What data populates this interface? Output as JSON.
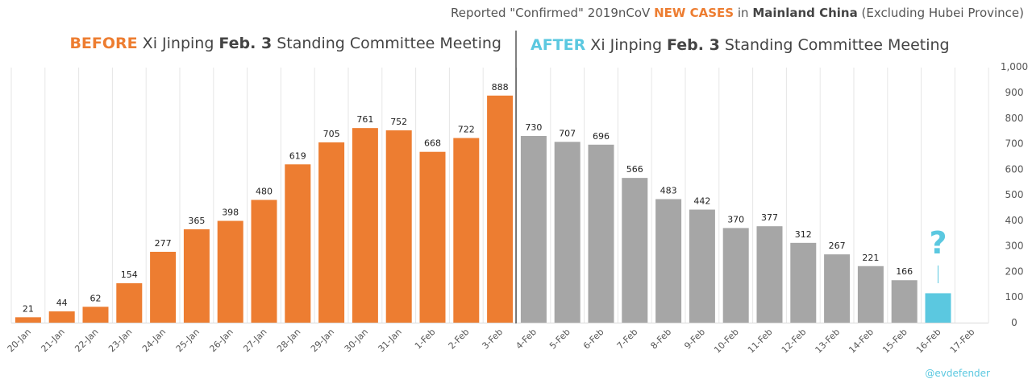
{
  "chart_data": {
    "type": "bar",
    "title_parts": [
      "Reported \"Confirmed\" 2019nCoV ",
      "NEW CASES",
      " in ",
      "Mainland China",
      " (Excluding Hubei Province)"
    ],
    "before_heading": [
      "BEFORE",
      " Xi Jinping ",
      "Feb. 3",
      " Standing Committee Meeting"
    ],
    "after_heading": [
      "AFTER",
      " Xi Jinping ",
      "Feb. 3",
      " Standing Committee Meeting"
    ],
    "categories": [
      "20-Jan",
      "21-Jan",
      "22-Jan",
      "23-Jan",
      "24-Jan",
      "25-Jan",
      "26-Jan",
      "27-Jan",
      "28-Jan",
      "29-Jan",
      "30-Jan",
      "31-Jan",
      "1-Feb",
      "2-Feb",
      "3-Feb",
      "4-Feb",
      "5-Feb",
      "6-Feb",
      "7-Feb",
      "8-Feb",
      "9-Feb",
      "10-Feb",
      "11-Feb",
      "12-Feb",
      "13-Feb",
      "14-Feb",
      "15-Feb",
      "16-Feb",
      "17-Feb"
    ],
    "series": [
      {
        "values": [
          21,
          44,
          62,
          154,
          277,
          365,
          398,
          480,
          619,
          705,
          761,
          752,
          668,
          722,
          888,
          730,
          707,
          696,
          566,
          483,
          442,
          370,
          377,
          312,
          267,
          221,
          166,
          115,
          null
        ],
        "data_labels": [
          "21",
          "44",
          "62",
          "154",
          "277",
          "365",
          "398",
          "480",
          "619",
          "705",
          "761",
          "752",
          "668",
          "722",
          "888",
          "730",
          "707",
          "696",
          "566",
          "483",
          "442",
          "370",
          "377",
          "312",
          "267",
          "221",
          "166",
          "",
          ""
        ]
      }
    ],
    "yticks": [
      0,
      100,
      200,
      300,
      400,
      500,
      600,
      700,
      800,
      900,
      1000
    ],
    "ytick_labels": [
      "0",
      "100",
      "200",
      "300",
      "400",
      "500",
      "600",
      "700",
      "800",
      "900",
      "1,000"
    ],
    "ylim": [
      0,
      1000
    ],
    "divider_after_category": "3-Feb",
    "question_label": "?",
    "question_category": "16-Feb",
    "grid": "vertical",
    "colors": {
      "before": "#ED7D31",
      "after": "#A6A6A6",
      "unknown": "#5BC8E0",
      "title_accent": "#ED7D31",
      "after_accent": "#5BC8E0"
    }
  },
  "credit": "@evdefender"
}
